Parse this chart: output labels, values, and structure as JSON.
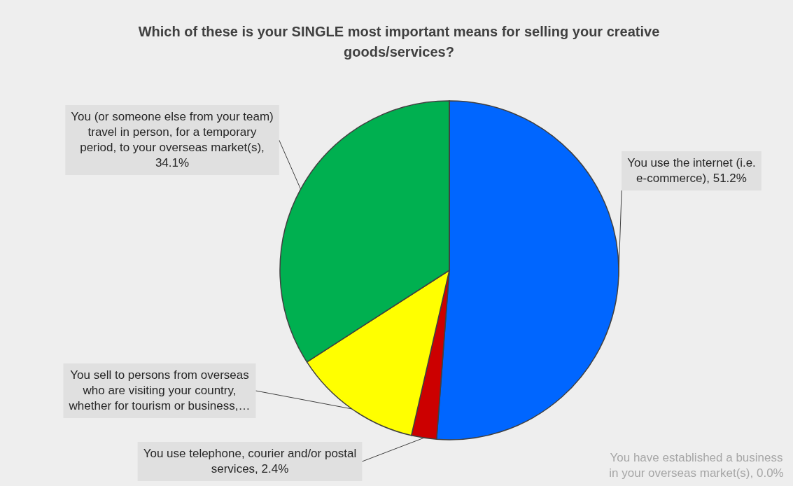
{
  "chart_data": {
    "type": "pie",
    "title": "Which of these is your SINGLE most important means for selling your creative goods/services?",
    "categories": [
      "You use the internet (i.e. e-commerce), 51.2%",
      "You use telephone, courier and/or postal services, 2.4%",
      "You sell to persons from overseas who are visiting your country, whether for tourism or business,…",
      "You (or someone else from your team) travel in person, for a temporary period, to your overseas market(s), 34.1%",
      "You have established a business in your overseas market(s), 0.0%"
    ],
    "values": [
      51.2,
      2.4,
      12.3,
      34.1,
      0.0
    ],
    "colors": [
      "#0066ff",
      "#cc0000",
      "#ffff00",
      "#00b050",
      "#7f7f7f"
    ]
  }
}
